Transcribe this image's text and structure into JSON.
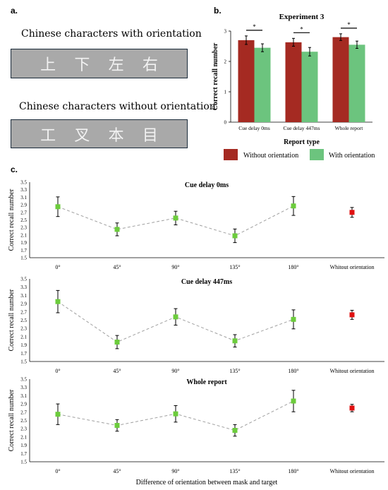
{
  "panel_a": {
    "letter": "a.",
    "oriented": {
      "label": "Chinese characters with orientation",
      "chars": [
        "上",
        "下",
        "左",
        "右"
      ]
    },
    "unoriented": {
      "label": "Chinese characters without orientation",
      "chars": [
        "工",
        "叉",
        "本",
        "目"
      ]
    }
  },
  "panel_b_letter": "b.",
  "panel_c_letter": "c.",
  "colors": {
    "without_orientation": "#a52a22",
    "with_orientation": "#6cc47e",
    "line_marker": "#6ccc3c",
    "reference_marker": "#e01010",
    "dashed_line": "#a0a0a0"
  },
  "chart_data": [
    {
      "type": "bar",
      "title": "Experiment 3",
      "xlabel": "Report type",
      "ylabel": "Correct recall number",
      "categories": [
        "Cue delay 0ms",
        "Cue delay 447ms",
        "Whole report"
      ],
      "ylim": [
        0,
        3
      ],
      "yticks": [
        "0",
        "1",
        "2",
        "3"
      ],
      "series": [
        {
          "name": "Without orientation",
          "values": [
            2.7,
            2.63,
            2.8
          ],
          "errors": [
            0.14,
            0.13,
            0.11
          ]
        },
        {
          "name": "With orientation",
          "values": [
            2.45,
            2.32,
            2.55
          ],
          "errors": [
            0.13,
            0.14,
            0.12
          ]
        }
      ],
      "significance": [
        "*",
        "*",
        "*"
      ],
      "legend": [
        "Without orientation",
        "With orientation"
      ],
      "legend_position": "bottom"
    },
    {
      "type": "scatter",
      "title": "Cue delay 0ms",
      "ylabel": "Correct recall number",
      "categories": [
        "0°",
        "45°",
        "90°",
        "135°",
        "180°",
        "Whitout orientation"
      ],
      "values": [
        2.85,
        2.25,
        2.55,
        2.08,
        2.87,
        2.7
      ],
      "errors": [
        0.26,
        0.17,
        0.18,
        0.18,
        0.25,
        0.13
      ],
      "ylim": [
        1.5,
        3.5
      ],
      "yticks": [
        "1.5",
        "1.7",
        "1.9",
        "2.1",
        "2.3",
        "2.5",
        "2.7",
        "2.9",
        "3.1",
        "3.3",
        "3.5"
      ]
    },
    {
      "type": "scatter",
      "title": "Cue delay 447ms",
      "ylabel": "Correct recall number",
      "categories": [
        "0°",
        "45°",
        "90°",
        "135°",
        "180°",
        "Whitout orientation"
      ],
      "values": [
        2.95,
        1.97,
        2.58,
        2.0,
        2.52,
        2.63
      ],
      "errors": [
        0.27,
        0.16,
        0.2,
        0.15,
        0.23,
        0.11
      ],
      "ylim": [
        1.5,
        3.5
      ],
      "yticks": [
        "1.5",
        "1.7",
        "1.9",
        "2.1",
        "2.3",
        "2.5",
        "2.7",
        "2.9",
        "3.1",
        "3.3",
        "3.5"
      ]
    },
    {
      "type": "scatter",
      "title": "Whole report",
      "ylabel": "Correct recall number",
      "xlabel": "Difference of orientation between mask and target",
      "categories": [
        "0°",
        "45°",
        "90°",
        "135°",
        "180°",
        "Whitout orientation"
      ],
      "values": [
        2.65,
        2.38,
        2.66,
        2.26,
        2.97,
        2.8
      ],
      "errors": [
        0.25,
        0.14,
        0.2,
        0.14,
        0.26,
        0.09
      ],
      "ylim": [
        1.5,
        3.5
      ],
      "yticks": [
        "1.5",
        "1.7",
        "1.9",
        "2.1",
        "2.3",
        "2.5",
        "2.7",
        "2.9",
        "3.1",
        "3.3",
        "3.5"
      ]
    }
  ]
}
